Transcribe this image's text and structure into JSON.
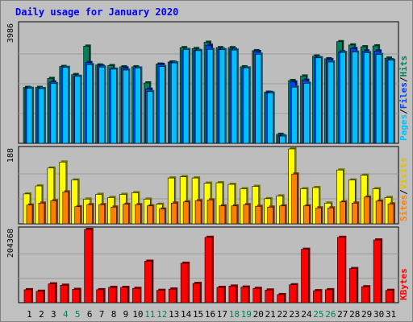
{
  "title": "Daily usage for January 2020",
  "colors": {
    "hits": "#00805c",
    "files": "#0040ff",
    "pages": "#00c0ff",
    "visits": "#ff8000",
    "sites": "#ffff00",
    "kbytes": "#ff0000",
    "weekend_day": "#00805c",
    "weekday": "#000000"
  },
  "panel_labels": {
    "top": {
      "max": "3986",
      "pages": "Pages",
      "files": "Files",
      "hits": "Hits",
      "sep": "/"
    },
    "middle": {
      "max": "188",
      "sites": "Sites",
      "visits": "Visits",
      "sep": "/"
    },
    "bottom": {
      "max": "204368",
      "kbytes": "KBytes"
    }
  },
  "chart_data": {
    "type": "bar",
    "title": "Daily usage for January 2020",
    "categories": [
      "1",
      "2",
      "3",
      "4",
      "5",
      "6",
      "7",
      "8",
      "9",
      "10",
      "11",
      "12",
      "13",
      "14",
      "15",
      "16",
      "17",
      "18",
      "19",
      "20",
      "21",
      "22",
      "23",
      "24",
      "25",
      "26",
      "27",
      "28",
      "29",
      "30",
      "31"
    ],
    "weekend_days": [
      "4",
      "5",
      "11",
      "12",
      "18",
      "19",
      "25",
      "26"
    ],
    "panels": [
      {
        "name": "top",
        "max_label": "3986",
        "ylim": [
          0,
          3986
        ],
        "series": [
          {
            "name": "Hits",
            "values": [
              1870,
              1870,
              2170,
              2570,
              2300,
              3250,
              2620,
              2600,
              2560,
              2560,
              2020,
              2650,
              2720,
              3200,
              3170,
              3380,
              3200,
              3200,
              2560,
              3100,
              1710,
              300,
              2100,
              2250,
              2920,
              2830,
              3400,
              3290,
              3230,
              3260,
              2850
            ]
          },
          {
            "name": "Files",
            "values": [
              1850,
              1830,
              2050,
              2530,
              2240,
              2700,
              2590,
              2480,
              2520,
              2520,
              1810,
              2640,
              2710,
              3110,
              3110,
              3280,
              3150,
              3150,
              2520,
              3070,
              1700,
              260,
              2050,
              2110,
              2870,
              2800,
              3060,
              3170,
              3090,
              3090,
              2800
            ]
          },
          {
            "name": "Pages",
            "values": [
              1840,
              1830,
              2000,
              2540,
              2240,
              2630,
              2550,
              2480,
              2450,
              2520,
              1730,
              2570,
              2690,
              3140,
              3100,
              3140,
              3130,
              3120,
              2520,
              2980,
              1680,
              240,
              1880,
              2010,
              2860,
              2720,
              3040,
              3050,
              3030,
              2970,
              2780
            ]
          }
        ]
      },
      {
        "name": "middle",
        "max_label": "188",
        "ylim": [
          0,
          188
        ],
        "series": [
          {
            "name": "Sites",
            "values": [
              75,
              95,
              140,
              155,
              110,
              62,
              74,
              66,
              74,
              78,
              62,
              49,
              115,
              118,
              115,
              102,
              103,
              99,
              88,
              94,
              63,
              70,
              188,
              88,
              91,
              52,
              135,
              110,
              122,
              88,
              66
            ]
          },
          {
            "name": "Visits",
            "values": [
              47,
              52,
              58,
              80,
              43,
              48,
              48,
              42,
              49,
              48,
              45,
              37,
              52,
              55,
              58,
              60,
              45,
              45,
              48,
              44,
              42,
              45,
              125,
              45,
              40,
              40,
              55,
              52,
              67,
              57,
              50
            ]
          }
        ]
      },
      {
        "name": "bottom",
        "max_label": "204368",
        "ylim": [
          0,
          204368
        ],
        "series": [
          {
            "name": "KBytes",
            "values": [
              36200,
              31800,
              52400,
              48700,
              37100,
              204368,
              36200,
              42600,
              42600,
              39900,
              115700,
              34400,
              38000,
              110000,
              53700,
              182300,
              42600,
              46300,
              43500,
              39900,
              35300,
              22600,
              50000,
              149000,
              33500,
              36200,
              182300,
              95200,
              44400,
              175000,
              34400
            ]
          }
        ]
      }
    ]
  }
}
